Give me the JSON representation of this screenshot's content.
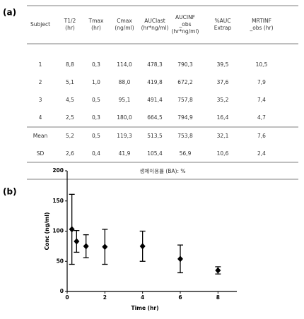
{
  "panel_labels": [
    "(a)",
    "(b)"
  ],
  "table": {
    "header": [
      [
        "Subject"
      ],
      [
        "T1/2",
        "(hr)"
      ],
      [
        "Tmax",
        "(hr)"
      ],
      [
        "Cmax",
        "(ng/ml)"
      ],
      [
        "AUClast",
        "(hr*ng/ml)"
      ],
      [
        "AUCINF",
        "_obs",
        "(hr*ng/ml)"
      ],
      [
        "%AUC",
        "Extrap"
      ],
      [
        "MRTINF",
        "_obs (hr)"
      ]
    ],
    "rows": [
      [
        "1",
        "8,8",
        "0,3",
        "114,0",
        "478,3",
        "790,3",
        "39,5",
        "10,5"
      ],
      [
        "2",
        "5,1",
        "1,0",
        "88,0",
        "419,8",
        "672,2",
        "37,6",
        "7,9"
      ],
      [
        "3",
        "4,5",
        "0,5",
        "95,1",
        "491,4",
        "757,8",
        "35,2",
        "7,4"
      ],
      [
        "4",
        "2,5",
        "0,3",
        "180,0",
        "664,5",
        "794,9",
        "16,4",
        "4,7"
      ]
    ],
    "summary": [
      [
        "Mean",
        "5,2",
        "0,5",
        "119,3",
        "513,5",
        "753,8",
        "32,1",
        "7,6"
      ],
      [
        "SD",
        "2,6",
        "0,4",
        "41,9",
        "105,4",
        "56,9",
        "10,6",
        "2,4"
      ]
    ],
    "footer": "생체이용률 (BA):   %"
  },
  "chart_data": {
    "type": "scatter",
    "x": [
      0.25,
      0.5,
      1,
      2,
      4,
      6,
      8
    ],
    "series": [
      {
        "color": "#000000",
        "values": [
          103,
          83,
          75,
          74,
          75,
          54,
          35
        ],
        "errors": [
          58,
          18,
          19,
          29,
          25,
          23,
          6
        ]
      }
    ],
    "xlim": [
      0,
      9
    ],
    "ylim": [
      0,
      200
    ],
    "xticks": [
      0,
      2,
      4,
      6,
      8
    ],
    "yticks": [
      0,
      50,
      100,
      150,
      200
    ],
    "xlabel": "Time (hr)",
    "ylabel": "Conc (ng/ml)"
  }
}
